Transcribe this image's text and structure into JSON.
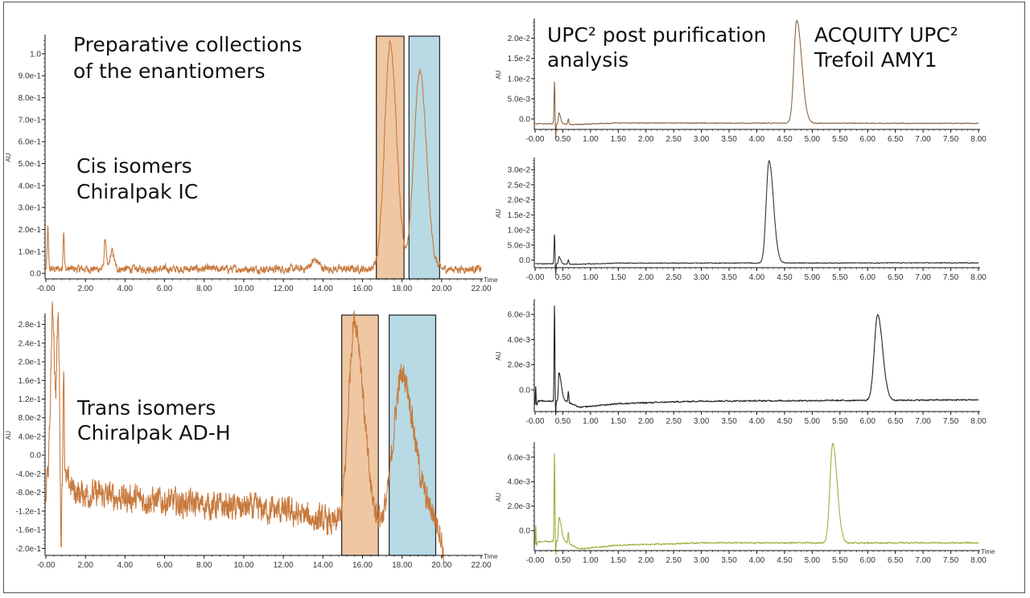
{
  "annotations": {
    "prep_line1": "Preparative collections",
    "prep_line2": "of the enantiomers",
    "cis_line1": "Cis isomers",
    "cis_line2": "Chiralpak IC",
    "trans_line1": "Trans isomers",
    "trans_line2": "Chiralpak AD-H",
    "upc_line1": "UPC² post purification",
    "upc_line2": "analysis",
    "acq_line1": "ACQUITY UPC²",
    "acq_line2": "Trefoil AMY1"
  },
  "colors": {
    "orange_band": "#efc7a3",
    "blue_band": "#b8dae4"
  },
  "chart_data": [
    {
      "id": "prep-cis",
      "type": "line",
      "title": "Cis isomers, Chiralpak IC",
      "xlabel": "Time",
      "ylabel": "AU",
      "xlim": [
        0,
        22
      ],
      "ylim": [
        -0.025,
        1.08
      ],
      "x_end": 22,
      "xticks": [
        [
          0,
          "-0.00"
        ],
        [
          2,
          "2.00"
        ],
        [
          4,
          "4.00"
        ],
        [
          6,
          "6.00"
        ],
        [
          8,
          "8.00"
        ],
        [
          10,
          "10.00"
        ],
        [
          12,
          "12.00"
        ],
        [
          14,
          "14.00"
        ],
        [
          16,
          "16.00"
        ],
        [
          18,
          "18.00"
        ],
        [
          20,
          "20.00"
        ],
        [
          22,
          "22.00"
        ]
      ],
      "yticks": [
        [
          0,
          "0.0"
        ],
        [
          0.1,
          "1.0e-1"
        ],
        [
          0.2,
          "2.0e-1"
        ],
        [
          0.3,
          "3.0e-1"
        ],
        [
          0.4,
          "4.0e-1"
        ],
        [
          0.5,
          "5.0e-1"
        ],
        [
          0.6,
          "6.0e-1"
        ],
        [
          0.7,
          "7.0e-1"
        ],
        [
          0.8,
          "8.0e-1"
        ],
        [
          0.9,
          "9.0e-1"
        ],
        [
          1.0,
          "1.0"
        ]
      ],
      "color": "#c87a3e",
      "noise": 0.014,
      "baseline": [
        [
          0,
          0.02
        ],
        [
          22,
          0.02
        ]
      ],
      "peaks": [
        {
          "c": 0.1,
          "h": 0.19,
          "wl": 0.03,
          "wr": 0.03
        },
        {
          "c": 0.9,
          "h": 0.18,
          "wl": 0.03,
          "wr": 0.03
        },
        {
          "c": 3.0,
          "h": 0.14,
          "wl": 0.05,
          "wr": 0.05
        },
        {
          "c": 3.35,
          "h": 0.08,
          "wl": 0.1,
          "wr": 0.1
        },
        {
          "c": 13.6,
          "h": 0.04,
          "wl": 0.2,
          "wr": 0.2
        },
        {
          "c": 17.4,
          "h": 1.03,
          "wl": 0.28,
          "wr": 0.32
        },
        {
          "c": 18.9,
          "h": 0.9,
          "wl": 0.3,
          "wr": 0.33
        }
      ],
      "bands": [
        {
          "from": 16.7,
          "to": 18.1,
          "kind": "orange"
        },
        {
          "from": 18.35,
          "to": 19.9,
          "kind": "blue"
        }
      ]
    },
    {
      "id": "prep-trans",
      "type": "line",
      "title": "Trans isomers, Chiralpak AD-H",
      "xlabel": "Time",
      "ylabel": "AU",
      "xlim": [
        0,
        22
      ],
      "ylim": [
        -0.215,
        0.3
      ],
      "x_end": 20.1,
      "xticks": [
        [
          0,
          "-0.00"
        ],
        [
          2,
          "2.00"
        ],
        [
          4,
          "4.00"
        ],
        [
          6,
          "6.00"
        ],
        [
          8,
          "8.00"
        ],
        [
          10,
          "10.00"
        ],
        [
          12,
          "12.00"
        ],
        [
          14,
          "14.00"
        ],
        [
          16,
          "16.00"
        ],
        [
          18,
          "18.00"
        ],
        [
          20,
          "20.00"
        ],
        [
          22,
          "22.00"
        ]
      ],
      "yticks": [
        [
          -0.2,
          "-2.0e-1"
        ],
        [
          -0.16,
          "-1.6e-1"
        ],
        [
          -0.12,
          "-1.2e-1"
        ],
        [
          -0.08,
          "-8.0e-2"
        ],
        [
          -0.04,
          "-4.0e-2"
        ],
        [
          0,
          "0.0"
        ],
        [
          0.04,
          "4.0e-2"
        ],
        [
          0.08,
          "8.0e-2"
        ],
        [
          0.12,
          "1.2e-1"
        ],
        [
          0.16,
          "1.6e-1"
        ],
        [
          0.2,
          "2.0e-1"
        ],
        [
          0.24,
          "2.4e-1"
        ],
        [
          0.28,
          "2.8e-1"
        ]
      ],
      "color": "#c87a3e",
      "noise": 0.024,
      "baseline": [
        [
          0,
          -0.1
        ],
        [
          0.05,
          -0.05
        ],
        [
          1.2,
          -0.06
        ],
        [
          1.5,
          -0.08
        ],
        [
          6,
          -0.1
        ],
        [
          12,
          -0.12
        ],
        [
          14.8,
          -0.15
        ],
        [
          16.8,
          -0.15
        ],
        [
          17.3,
          -0.17
        ],
        [
          19.5,
          -0.13
        ],
        [
          19.9,
          -0.16
        ],
        [
          20.1,
          -0.21
        ]
      ],
      "peaks": [
        {
          "c": 0.35,
          "h": 0.36,
          "wl": 0.1,
          "wr": 0.1
        },
        {
          "c": 0.62,
          "h": 0.34,
          "wl": 0.07,
          "wr": 0.07
        },
        {
          "c": 0.76,
          "h": -0.16,
          "wl": 0.03,
          "wr": 0.03
        },
        {
          "c": 0.9,
          "h": 0.25,
          "wl": 0.03,
          "wr": 0.03
        },
        {
          "c": 15.6,
          "h": 0.44,
          "wl": 0.3,
          "wr": 0.45
        },
        {
          "c": 18.0,
          "h": 0.33,
          "wl": 0.45,
          "wr": 0.6
        }
      ],
      "bands": [
        {
          "from": 14.95,
          "to": 16.8,
          "kind": "orange"
        },
        {
          "from": 17.35,
          "to": 19.7,
          "kind": "blue"
        }
      ]
    },
    {
      "id": "upc-1",
      "type": "line",
      "xlabel": "",
      "ylabel": "AU",
      "xlim": [
        0,
        8
      ],
      "ylim": [
        -0.0026,
        0.0245
      ],
      "x_end": 8,
      "xticks": [
        [
          0,
          "-0.00"
        ],
        [
          0.5,
          "0.50"
        ],
        [
          1,
          "1.00"
        ],
        [
          1.5,
          "1.50"
        ],
        [
          2,
          "2.00"
        ],
        [
          2.5,
          "2.50"
        ],
        [
          3,
          "3.00"
        ],
        [
          3.5,
          "3.50"
        ],
        [
          4,
          "4.00"
        ],
        [
          4.5,
          "4.50"
        ],
        [
          5,
          "5.00"
        ],
        [
          5.5,
          "5.50"
        ],
        [
          6,
          "6.00"
        ],
        [
          6.5,
          "6.50"
        ],
        [
          7,
          "7.00"
        ],
        [
          7.5,
          "7.50"
        ],
        [
          8,
          "8.00"
        ]
      ],
      "yticks": [
        [
          0,
          "0.0"
        ],
        [
          0.005,
          "5.0e-3"
        ],
        [
          0.01,
          "1.0e-2"
        ],
        [
          0.015,
          "1.5e-2"
        ],
        [
          0.02,
          "2.0e-2"
        ]
      ],
      "color": "#8a6646",
      "noise": 8e-05,
      "baseline": [
        [
          0,
          -0.0012
        ],
        [
          0.33,
          -0.0012
        ],
        [
          0.7,
          -0.0014
        ],
        [
          1.5,
          -0.001
        ],
        [
          8,
          -0.0011
        ]
      ],
      "peaks": [
        {
          "c": 0.35,
          "h": 0.0105,
          "wl": 0.008,
          "wr": 0.008
        },
        {
          "c": 0.37,
          "h": -0.004,
          "wl": 0.006,
          "wr": 0.006
        },
        {
          "c": 0.43,
          "h": 0.0027,
          "wl": 0.01,
          "wr": 0.03
        },
        {
          "c": 0.6,
          "h": 0.0013,
          "wl": 0.01,
          "wr": 0.01
        },
        {
          "c": 4.72,
          "h": 0.0255,
          "wl": 0.05,
          "wr": 0.09
        }
      ],
      "bands": []
    },
    {
      "id": "upc-2",
      "type": "line",
      "xlabel": "",
      "ylabel": "AU",
      "xlim": [
        0,
        8
      ],
      "ylim": [
        -0.0025,
        0.0335
      ],
      "x_end": 8,
      "xticks": [
        [
          0,
          "-0.00"
        ],
        [
          0.5,
          "0.50"
        ],
        [
          1,
          "1.00"
        ],
        [
          1.5,
          "1.50"
        ],
        [
          2,
          "2.00"
        ],
        [
          2.5,
          "2.50"
        ],
        [
          3,
          "3.00"
        ],
        [
          3.5,
          "3.50"
        ],
        [
          4,
          "4.00"
        ],
        [
          4.5,
          "4.50"
        ],
        [
          5,
          "5.00"
        ],
        [
          5.5,
          "5.50"
        ],
        [
          6,
          "6.00"
        ],
        [
          6.5,
          "6.50"
        ],
        [
          7,
          "7.00"
        ],
        [
          7.5,
          "7.50"
        ],
        [
          8,
          "8.00"
        ]
      ],
      "yticks": [
        [
          0,
          "0.0"
        ],
        [
          0.005,
          "5.0e-3"
        ],
        [
          0.01,
          "1.0e-2"
        ],
        [
          0.015,
          "1.5e-2"
        ],
        [
          0.02,
          "2.0e-2"
        ],
        [
          0.025,
          "2.5e-2"
        ],
        [
          0.03,
          "3.0e-2"
        ]
      ],
      "color": "#333333",
      "noise": 0.0001,
      "baseline": [
        [
          0,
          -0.0012
        ],
        [
          0.33,
          -0.0012
        ],
        [
          0.7,
          -0.0014
        ],
        [
          1.5,
          -0.001
        ],
        [
          8,
          -0.0009
        ]
      ],
      "peaks": [
        {
          "c": 0.35,
          "h": 0.0098,
          "wl": 0.008,
          "wr": 0.008
        },
        {
          "c": 0.37,
          "h": -0.004,
          "wl": 0.006,
          "wr": 0.006
        },
        {
          "c": 0.43,
          "h": 0.0025,
          "wl": 0.01,
          "wr": 0.03
        },
        {
          "c": 0.6,
          "h": 0.0013,
          "wl": 0.01,
          "wr": 0.01
        },
        {
          "c": 4.22,
          "h": 0.034,
          "wl": 0.05,
          "wr": 0.08
        }
      ],
      "bands": []
    },
    {
      "id": "upc-3",
      "type": "line",
      "xlabel": "",
      "ylabel": "AU",
      "xlim": [
        0,
        8
      ],
      "ylim": [
        -0.00173,
        0.0071
      ],
      "x_end": 8,
      "xticks": [
        [
          0,
          "-0.00"
        ],
        [
          0.5,
          "0.50"
        ],
        [
          1,
          "1.00"
        ],
        [
          1.5,
          "1.50"
        ],
        [
          2,
          "2.00"
        ],
        [
          2.5,
          "2.50"
        ],
        [
          3,
          "3.00"
        ],
        [
          3.5,
          "3.50"
        ],
        [
          4,
          "4.00"
        ],
        [
          4.5,
          "4.50"
        ],
        [
          5,
          "5.00"
        ],
        [
          5.5,
          "5.50"
        ],
        [
          6,
          "6.00"
        ],
        [
          6.5,
          "6.50"
        ],
        [
          7,
          "7.00"
        ],
        [
          7.5,
          "7.50"
        ],
        [
          8,
          "8.00"
        ]
      ],
      "yticks": [
        [
          0,
          "0.0"
        ],
        [
          0.002,
          "2.0e-3"
        ],
        [
          0.004,
          "4.0e-3"
        ],
        [
          0.006,
          "6.0e-3"
        ]
      ],
      "color": "#222222",
      "noise": 4e-05,
      "baseline": [
        [
          0,
          -0.0016
        ],
        [
          0.05,
          -0.0009
        ],
        [
          0.33,
          -0.0009
        ],
        [
          0.5,
          -0.0008
        ],
        [
          0.8,
          -0.0014
        ],
        [
          1.5,
          -0.0011
        ],
        [
          3,
          -0.0009
        ],
        [
          8,
          -0.0008
        ]
      ],
      "peaks": [
        {
          "c": 0.01,
          "h": 0.0018,
          "wl": 0.006,
          "wr": 0.006
        },
        {
          "c": 0.35,
          "h": 0.0078,
          "wl": 0.007,
          "wr": 0.007
        },
        {
          "c": 0.37,
          "h": -0.0013,
          "wl": 0.005,
          "wr": 0.005
        },
        {
          "c": 0.43,
          "h": 0.0022,
          "wl": 0.01,
          "wr": 0.04
        },
        {
          "c": 0.6,
          "h": 0.0009,
          "wl": 0.008,
          "wr": 0.008
        },
        {
          "c": 6.18,
          "h": 0.0068,
          "wl": 0.06,
          "wr": 0.09
        }
      ],
      "bands": []
    },
    {
      "id": "upc-4",
      "type": "line",
      "xlabel": "Time",
      "ylabel": "AU",
      "xlim": [
        0,
        8
      ],
      "ylim": [
        -0.00163,
        0.0071
      ],
      "x_end": 8,
      "xticks": [
        [
          0,
          "-0.00"
        ],
        [
          0.5,
          "0.50"
        ],
        [
          1,
          "1.00"
        ],
        [
          1.5,
          "1.50"
        ],
        [
          2,
          "2.00"
        ],
        [
          2.5,
          "2.50"
        ],
        [
          3,
          "3.00"
        ],
        [
          3.5,
          "3.50"
        ],
        [
          4,
          "4.00"
        ],
        [
          4.5,
          "4.50"
        ],
        [
          5,
          "5.00"
        ],
        [
          5.5,
          "5.50"
        ],
        [
          6,
          "6.00"
        ],
        [
          6.5,
          "6.50"
        ],
        [
          7,
          "7.00"
        ],
        [
          7.5,
          "7.50"
        ],
        [
          8,
          "8.00"
        ]
      ],
      "yticks": [
        [
          0,
          "0.0"
        ],
        [
          0.002,
          "2.0e-3"
        ],
        [
          0.004,
          "4.0e-3"
        ],
        [
          0.006,
          "6.0e-3"
        ]
      ],
      "color": "#a3ad3c",
      "noise": 4e-05,
      "baseline": [
        [
          0,
          -0.0016
        ],
        [
          0.05,
          -0.0009
        ],
        [
          0.33,
          -0.0009
        ],
        [
          0.5,
          -0.0008
        ],
        [
          0.8,
          -0.0015
        ],
        [
          1.5,
          -0.0012
        ],
        [
          3,
          -0.001
        ],
        [
          8,
          -0.001
        ]
      ],
      "peaks": [
        {
          "c": 0.01,
          "h": 0.0019,
          "wl": 0.006,
          "wr": 0.006
        },
        {
          "c": 0.35,
          "h": 0.0073,
          "wl": 0.007,
          "wr": 0.007
        },
        {
          "c": 0.37,
          "h": -0.0012,
          "wl": 0.005,
          "wr": 0.005
        },
        {
          "c": 0.43,
          "h": 0.0019,
          "wl": 0.01,
          "wr": 0.04
        },
        {
          "c": 0.6,
          "h": 0.0009,
          "wl": 0.008,
          "wr": 0.008
        },
        {
          "c": 5.37,
          "h": 0.0081,
          "wl": 0.05,
          "wr": 0.08
        }
      ],
      "bands": []
    }
  ]
}
